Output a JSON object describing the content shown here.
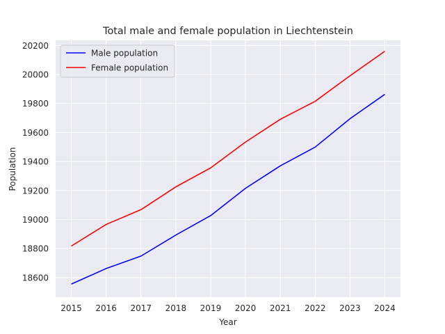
{
  "chart_data": {
    "type": "line",
    "title": "Total male and female population in Liechtenstein",
    "xlabel": "Year",
    "ylabel": "Population",
    "x": [
      2015,
      2016,
      2017,
      2018,
      2019,
      2020,
      2021,
      2022,
      2023,
      2024
    ],
    "xticks": [
      "2015",
      "2016",
      "2017",
      "2018",
      "2019",
      "2020",
      "2021",
      "2022",
      "2023",
      "2024"
    ],
    "yticks": [
      18600,
      18800,
      19000,
      19200,
      19400,
      19600,
      19800,
      20000,
      20200
    ],
    "ylim": [
      18465,
      20235
    ],
    "xlim": [
      2014.55,
      2024.45
    ],
    "grid": true,
    "legend_position": "upper left",
    "series": [
      {
        "name": "Male population",
        "color": "#0000ff",
        "values": [
          18555,
          18662,
          18748,
          18893,
          19027,
          19215,
          19370,
          19499,
          19695,
          19863
        ]
      },
      {
        "name": "Female population",
        "color": "#ff0000",
        "values": [
          18817,
          18966,
          19068,
          19225,
          19356,
          19534,
          19691,
          19815,
          19991,
          20160
        ]
      }
    ]
  }
}
